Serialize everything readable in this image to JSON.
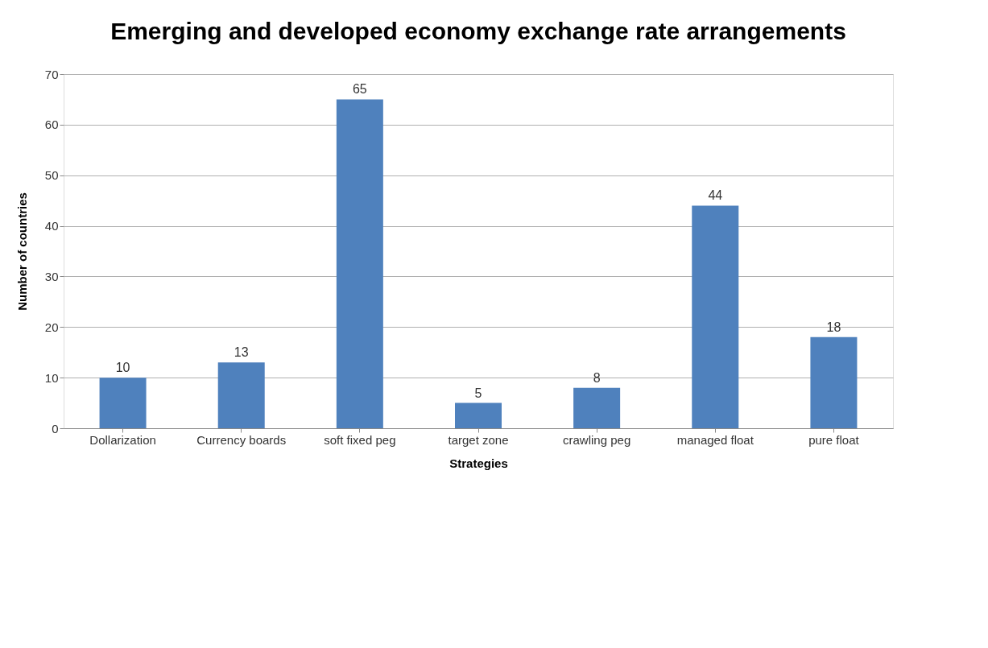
{
  "chart_data": {
    "type": "bar",
    "title": "Emerging and developed economy exchange rate arrangements",
    "xlabel": "Strategies",
    "ylabel": "Number of countries",
    "categories": [
      "Dollarization",
      "Currency boards",
      "soft fixed peg",
      "target zone",
      "crawling peg",
      "managed float",
      "pure float"
    ],
    "values": [
      10,
      13,
      65,
      5,
      8,
      44,
      18
    ],
    "color": "#4f81bd",
    "ylim": [
      0,
      70
    ],
    "yticks": [
      0,
      10,
      20,
      30,
      40,
      50,
      60,
      70
    ],
    "grid": "y",
    "data_labels": true
  }
}
